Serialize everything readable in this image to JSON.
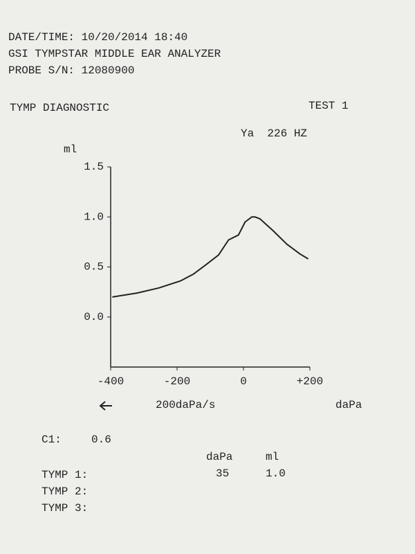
{
  "header": {
    "datetime": "DATE/TIME: 10/20/2014 18:40",
    "device": "GSI TYMPSTAR MIDDLE EAR ANALYZER",
    "probe": "PROBE S/N: 12080900"
  },
  "test": {
    "name": "TYMP DIAGNOSTIC",
    "number": "TEST 1",
    "probe_tone": "Ya  226 HZ"
  },
  "chart_data": {
    "type": "line",
    "y_label": "ml",
    "x_label": "daPa",
    "rate_label": "200daPa/s",
    "color": "#222222",
    "x": [
      -395,
      -320,
      -255,
      -190,
      -150,
      -110,
      -75,
      -45,
      -15,
      5,
      25,
      35,
      50,
      90,
      130,
      170,
      195
    ],
    "values": [
      0.2,
      0.24,
      0.29,
      0.36,
      0.43,
      0.53,
      0.62,
      0.77,
      0.82,
      0.95,
      1.0,
      1.0,
      0.98,
      0.86,
      0.73,
      0.63,
      0.58
    ],
    "xlim": [
      -400,
      200
    ],
    "ylim": [
      -0.5,
      1.5
    ],
    "xticks": [
      -400,
      -200,
      0,
      {
        "value": 200,
        "label": "+200"
      }
    ],
    "yticks": [
      {
        "value": 0,
        "label": "0.0"
      },
      0.5,
      {
        "value": 1,
        "label": "1.0"
      },
      {
        "value": 1.5,
        "label": "1.5"
      }
    ]
  },
  "results": {
    "c1_label": "C1:",
    "c1_value": 0.6,
    "columns": [
      "daPa",
      "ml"
    ],
    "rows": [
      {
        "label": "TYMP 1:",
        "dapa": 35,
        "ml": "1.0"
      },
      {
        "label": "TYMP 2:"
      },
      {
        "label": "TYMP 3:"
      }
    ]
  }
}
